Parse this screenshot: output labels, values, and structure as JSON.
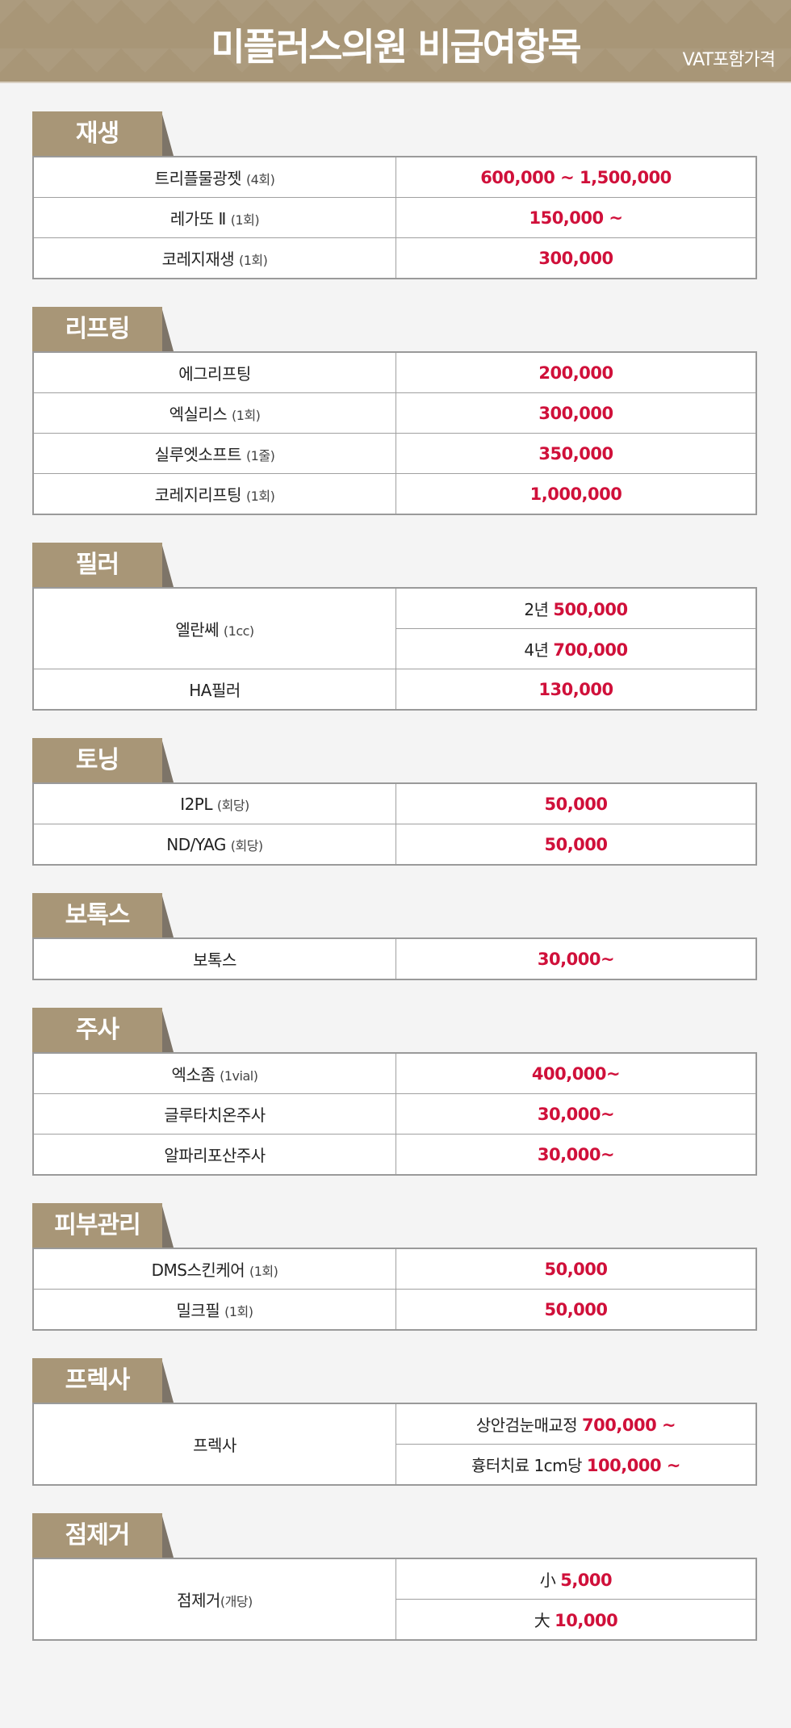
{
  "header": {
    "title": "미플러스의원 비급여항목",
    "vat_note": "VAT포함가격"
  },
  "colors": {
    "tab": "#a89677",
    "price": "#d0103a"
  },
  "sections": [
    {
      "title": "재생",
      "rows": [
        {
          "name": "트리플물광젯",
          "note": "(4회)",
          "prices": [
            {
              "prefix": "",
              "value": "600,000 ~ 1,500,000"
            }
          ]
        },
        {
          "name": "레가또 Ⅱ",
          "note": "(1회)",
          "prices": [
            {
              "prefix": "",
              "value": "150,000 ~"
            }
          ]
        },
        {
          "name": "코레지재생",
          "note": "(1회)",
          "prices": [
            {
              "prefix": "",
              "value": "300,000"
            }
          ]
        }
      ]
    },
    {
      "title": "리프팅",
      "rows": [
        {
          "name": "에그리프팅",
          "note": "",
          "prices": [
            {
              "prefix": "",
              "value": "200,000"
            }
          ]
        },
        {
          "name": "엑실리스",
          "note": "(1회)",
          "prices": [
            {
              "prefix": "",
              "value": "300,000"
            }
          ]
        },
        {
          "name": "실루엣소프트",
          "note": "(1줄)",
          "prices": [
            {
              "prefix": "",
              "value": "350,000"
            }
          ]
        },
        {
          "name": "코레지리프팅",
          "note": "(1회)",
          "prices": [
            {
              "prefix": "",
              "value": "1,000,000"
            }
          ]
        }
      ]
    },
    {
      "title": "필러",
      "rows": [
        {
          "name": "엘란쎄",
          "note": "(1cc)",
          "prices": [
            {
              "prefix": "2년",
              "value": "500,000"
            },
            {
              "prefix": "4년",
              "value": "700,000"
            }
          ]
        },
        {
          "name": "HA필러",
          "note": "",
          "prices": [
            {
              "prefix": "",
              "value": "130,000"
            }
          ]
        }
      ]
    },
    {
      "title": "토닝",
      "rows": [
        {
          "name": "I2PL",
          "note": "(회당)",
          "prices": [
            {
              "prefix": "",
              "value": "50,000"
            }
          ]
        },
        {
          "name": "ND/YAG",
          "note": "(회당)",
          "prices": [
            {
              "prefix": "",
              "value": "50,000"
            }
          ]
        }
      ]
    },
    {
      "title": "보톡스",
      "rows": [
        {
          "name": "보톡스",
          "note": "",
          "prices": [
            {
              "prefix": "",
              "value": "30,000~"
            }
          ]
        }
      ]
    },
    {
      "title": "주사",
      "rows": [
        {
          "name": "엑소좀",
          "note": "(1vial)",
          "prices": [
            {
              "prefix": "",
              "value": "400,000~"
            }
          ]
        },
        {
          "name": "글루타치온주사",
          "note": "",
          "prices": [
            {
              "prefix": "",
              "value": "30,000~"
            }
          ]
        },
        {
          "name": "알파리포산주사",
          "note": "",
          "prices": [
            {
              "prefix": "",
              "value": "30,000~"
            }
          ]
        }
      ]
    },
    {
      "title": "피부관리",
      "rows": [
        {
          "name": "DMS스킨케어",
          "note": "(1회)",
          "prices": [
            {
              "prefix": "",
              "value": "50,000"
            }
          ]
        },
        {
          "name": "밀크필",
          "note": "(1회)",
          "prices": [
            {
              "prefix": "",
              "value": "50,000"
            }
          ]
        }
      ]
    },
    {
      "title": "프렉사",
      "rows": [
        {
          "name": "프렉사",
          "note": "",
          "prices": [
            {
              "prefix": "상안검눈매교정",
              "value": "700,000 ~"
            },
            {
              "prefix": "흉터치료 1cm당",
              "value": "100,000 ~"
            }
          ]
        }
      ]
    },
    {
      "title": "점제거",
      "rows": [
        {
          "name": "점제거",
          "note": "(개당)",
          "prices": [
            {
              "prefix": "小",
              "value": "5,000"
            },
            {
              "prefix": "大",
              "value": "10,000"
            }
          ]
        }
      ]
    }
  ]
}
